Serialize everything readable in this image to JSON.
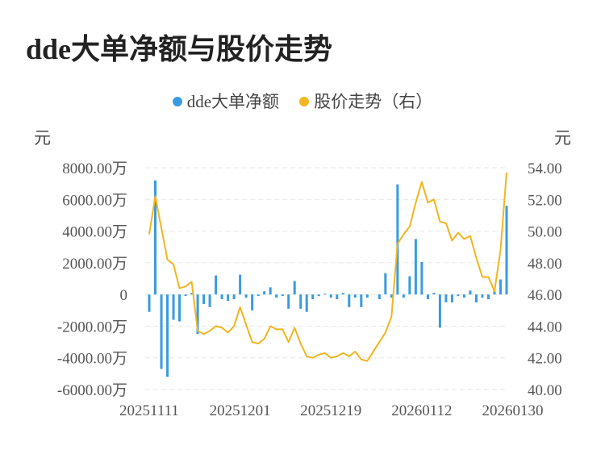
{
  "title": "dde大单净额与股价走势",
  "legend": [
    {
      "label": "dde大单净额",
      "color": "#3a9be0"
    },
    {
      "label": "股价走势（右）",
      "color": "#f2b51f"
    }
  ],
  "chart_data": {
    "type": "bar+line",
    "left_unit": "元",
    "right_unit": "元",
    "left_axis": {
      "min": -6000,
      "max": 8000,
      "ticks": [
        -6000,
        -4000,
        -2000,
        0,
        2000,
        4000,
        6000,
        8000
      ],
      "tick_labels": [
        "-6000.00万",
        "-4000.00万",
        "-2000.00万",
        "0",
        "2000.00万",
        "4000.00万",
        "6000.00万",
        "8000.00万"
      ]
    },
    "right_axis": {
      "min": 40,
      "max": 54,
      "ticks": [
        40,
        42,
        44,
        46,
        48,
        50,
        52,
        54
      ],
      "tick_labels": [
        "40.00",
        "42.00",
        "44.00",
        "46.00",
        "48.00",
        "50.00",
        "52.00",
        "54.00"
      ]
    },
    "x_tick_labels": [
      {
        "index": 0,
        "label": "20251111"
      },
      {
        "index": 15,
        "label": "20251201"
      },
      {
        "index": 30,
        "label": "20251219"
      },
      {
        "index": 45,
        "label": "20260112"
      },
      {
        "index": 60,
        "label": "20260130"
      }
    ],
    "grid": true,
    "series": [
      {
        "name": "dde大单净额",
        "type": "bar",
        "axis": "left",
        "values": [
          -1100,
          7200,
          -4700,
          -5200,
          -1600,
          -1700,
          -100,
          100,
          -2500,
          -600,
          -800,
          1200,
          -300,
          -400,
          -300,
          1250,
          -200,
          -1000,
          -100,
          200,
          450,
          -200,
          -100,
          -900,
          850,
          -900,
          -1100,
          -300,
          -100,
          50,
          -200,
          -300,
          100,
          -800,
          -200,
          -800,
          -200,
          0,
          -300,
          1350,
          -200,
          6950,
          -200,
          1150,
          3500,
          2050,
          -300,
          100,
          -2100,
          -500,
          -500,
          -100,
          -200,
          250,
          -500,
          -200,
          -300,
          200,
          950,
          5600
        ]
      },
      {
        "name": "股价走势（右）",
        "type": "line",
        "axis": "right",
        "values": [
          49.8,
          52.2,
          50.2,
          48.2,
          47.9,
          46.4,
          46.5,
          46.8,
          43.7,
          43.5,
          43.7,
          44.0,
          43.9,
          43.6,
          44.0,
          45.2,
          44.1,
          43.0,
          42.9,
          43.2,
          44.0,
          43.8,
          43.8,
          43.0,
          43.9,
          42.9,
          42.1,
          42.0,
          42.2,
          42.3,
          42.0,
          42.1,
          42.3,
          42.1,
          42.4,
          41.9,
          41.8,
          42.4,
          43.0,
          43.6,
          44.6,
          49.2,
          49.8,
          50.3,
          51.8,
          53.1,
          51.8,
          52.0,
          50.6,
          50.5,
          49.4,
          49.9,
          49.5,
          49.7,
          48.3,
          47.1,
          47.1,
          46.2,
          48.8,
          53.7
        ]
      }
    ]
  }
}
